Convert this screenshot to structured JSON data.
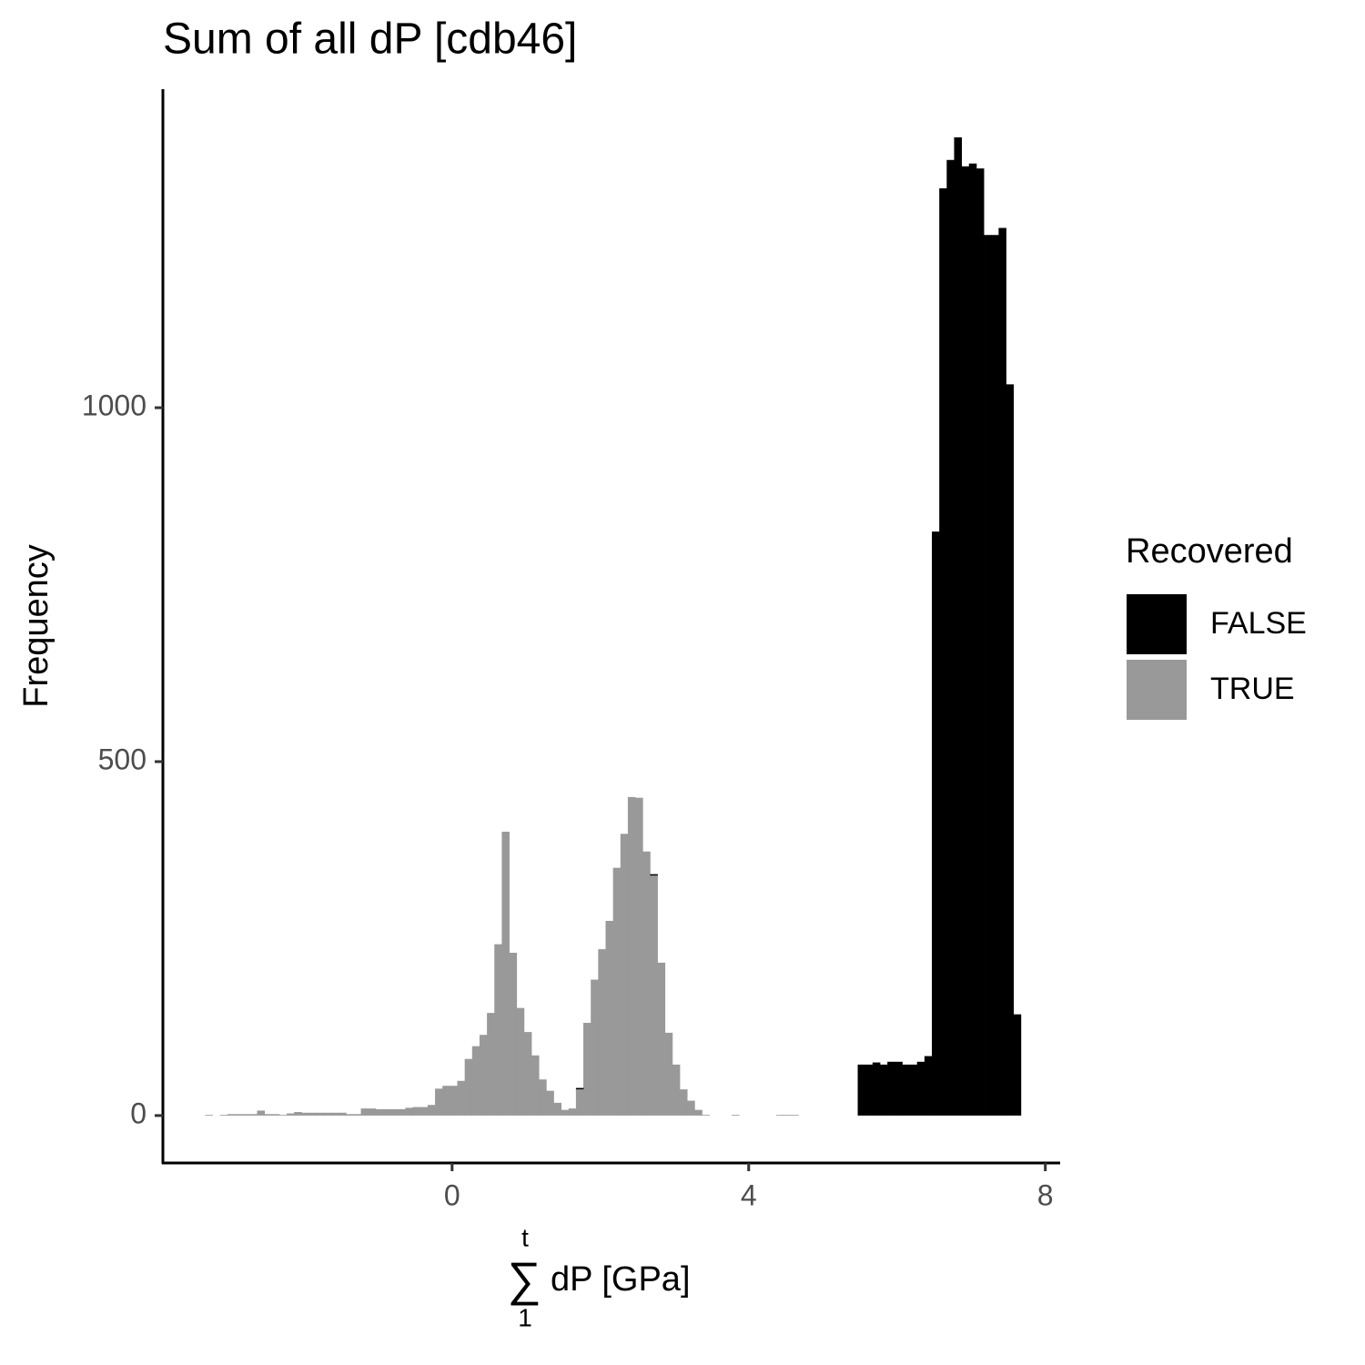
{
  "chart_data": {
    "type": "histogram",
    "title": "Sum of all dP [cdb46]",
    "x_label": {
      "operator": "∑",
      "upper": "t",
      "lower": "1",
      "text": "dP [GPa]"
    },
    "y_label": "Frequency",
    "legend_title": "Recovered",
    "stacked": true,
    "bins": [
      -3.33,
      -3.23,
      -3.13,
      -3.03,
      -2.93,
      -2.83,
      -2.73,
      -2.63,
      -2.53,
      -2.43,
      -2.33,
      -2.23,
      -2.13,
      -2.03,
      -1.93,
      -1.83,
      -1.73,
      -1.63,
      -1.53,
      -1.43,
      -1.33,
      -1.23,
      -1.13,
      -1.03,
      -0.93,
      -0.83,
      -0.73,
      -0.63,
      -0.53,
      -0.43,
      -0.33,
      -0.23,
      -0.13,
      -0.03,
      0.07,
      0.17,
      0.27,
      0.37,
      0.47,
      0.57,
      0.67,
      0.77,
      0.87,
      0.97,
      1.07,
      1.17,
      1.27,
      1.37,
      1.47,
      1.57,
      1.67,
      1.77,
      1.87,
      1.97,
      2.07,
      2.17,
      2.27,
      2.37,
      2.47,
      2.57,
      2.67,
      2.77,
      2.87,
      2.97,
      3.07,
      3.17,
      3.27,
      3.37,
      3.47,
      3.57,
      3.67,
      3.77,
      3.87,
      3.97,
      4.07,
      4.17,
      4.27,
      4.37,
      4.47,
      4.57,
      4.67,
      4.77,
      4.87,
      4.97,
      5.07,
      5.17,
      5.27,
      5.37,
      5.47,
      5.57,
      5.67,
      5.77,
      5.87,
      5.97,
      6.07,
      6.17,
      6.27,
      6.37,
      6.47,
      6.57,
      6.67,
      6.77,
      6.87,
      6.97,
      7.07,
      7.17,
      7.27,
      7.37,
      7.47,
      7.57,
      7.67
    ],
    "series": [
      {
        "name": "FALSE",
        "color": "#000000",
        "values": [
          0,
          0,
          0,
          0,
          0,
          0,
          0,
          0,
          0,
          0,
          0,
          0,
          0,
          0,
          0,
          0,
          0,
          0,
          0,
          0,
          0,
          0,
          0,
          0,
          0,
          0,
          0,
          0,
          0,
          0,
          0,
          0,
          0,
          0,
          0,
          0,
          0,
          0,
          0,
          0,
          0,
          0,
          0,
          0,
          0,
          0,
          0,
          0,
          0,
          0,
          2,
          0,
          0,
          0,
          0,
          0,
          0,
          0,
          0,
          0,
          2,
          0,
          0,
          0,
          0,
          0,
          0,
          0,
          0,
          0,
          0,
          0,
          0,
          0,
          0,
          0,
          0,
          0,
          0,
          0,
          0,
          0,
          0,
          0,
          0,
          0,
          0,
          0,
          72,
          72,
          75,
          72,
          76,
          76,
          72,
          72,
          76,
          84,
          825,
          1310,
          1350,
          1382,
          1341,
          1345,
          1338,
          1244,
          1244,
          1254,
          1033,
          143
        ]
      },
      {
        "name": "TRUE",
        "color": "#999999",
        "values": [
          1,
          0,
          1,
          2,
          2,
          2,
          2,
          7,
          2,
          2,
          1,
          3,
          5,
          4,
          4,
          4,
          4,
          4,
          4,
          2,
          2,
          10,
          10,
          9,
          9,
          9,
          9,
          11,
          12,
          12,
          15,
          38,
          42,
          42,
          49,
          80,
          98,
          114,
          145,
          242,
          401,
          230,
          152,
          118,
          85,
          51,
          35,
          18,
          8,
          10,
          37,
          131,
          192,
          235,
          275,
          350,
          398,
          450,
          449,
          373,
          339,
          216,
          117,
          72,
          37,
          21,
          8,
          1,
          0,
          0,
          0,
          1,
          0,
          0,
          0,
          0,
          0,
          1,
          1,
          1,
          0,
          0,
          0,
          0,
          0,
          0,
          0,
          0,
          0,
          0,
          0,
          0,
          0,
          0,
          0,
          0,
          0,
          0,
          0,
          0,
          0,
          0,
          0,
          0,
          0,
          0,
          0,
          0,
          0,
          0
        ]
      }
    ],
    "xlim": [
      -3.9,
      8.2
    ],
    "ylim": [
      -67,
      1450
    ],
    "xticks": [
      0,
      4,
      8
    ],
    "yticks": [
      0,
      500,
      1000
    ],
    "grid": false
  }
}
